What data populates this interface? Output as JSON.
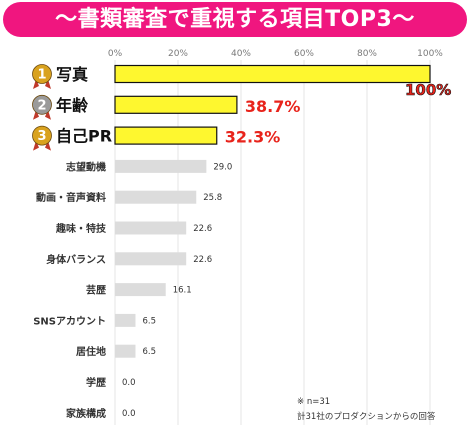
{
  "title": "〜書類審査で重視する項目TOP3〜",
  "colors": {
    "title_bg": "#f0167f",
    "top_bar": "#fef72f",
    "top_bar_stroke": "#111111",
    "other_bar": "#dcdcdc",
    "highlight_label": "#e8231b",
    "medal": "#d9a21e",
    "medal_silver": "#9a9a9a"
  },
  "chart_data": {
    "type": "bar",
    "orientation": "horizontal",
    "categories": [
      "写真",
      "年齢",
      "自己PR",
      "志望動機",
      "動画・音声資料",
      "趣味・特技",
      "身体バランス",
      "芸歴",
      "SNSアカウント",
      "居住地",
      "学歴",
      "家族構成"
    ],
    "values": [
      100,
      38.7,
      32.3,
      29.0,
      25.8,
      22.6,
      22.6,
      16.1,
      6.5,
      6.5,
      0.0,
      0.0
    ],
    "value_labels": [
      "100%",
      "38.7%",
      "32.3%",
      "29.0",
      "25.8",
      "22.6",
      "22.6",
      "16.1",
      "6.5",
      "6.5",
      "0.0",
      "0.0"
    ],
    "ranks": [
      "1",
      "2",
      "3"
    ],
    "x_ticks": [
      "0%",
      "20%",
      "40%",
      "60%",
      "80%",
      "100%"
    ],
    "xlim": [
      0,
      100
    ],
    "grid": true,
    "highlight_top": 3
  },
  "notes": {
    "n": "※ n=31",
    "source": "計31社のプロダクションからの回答"
  }
}
